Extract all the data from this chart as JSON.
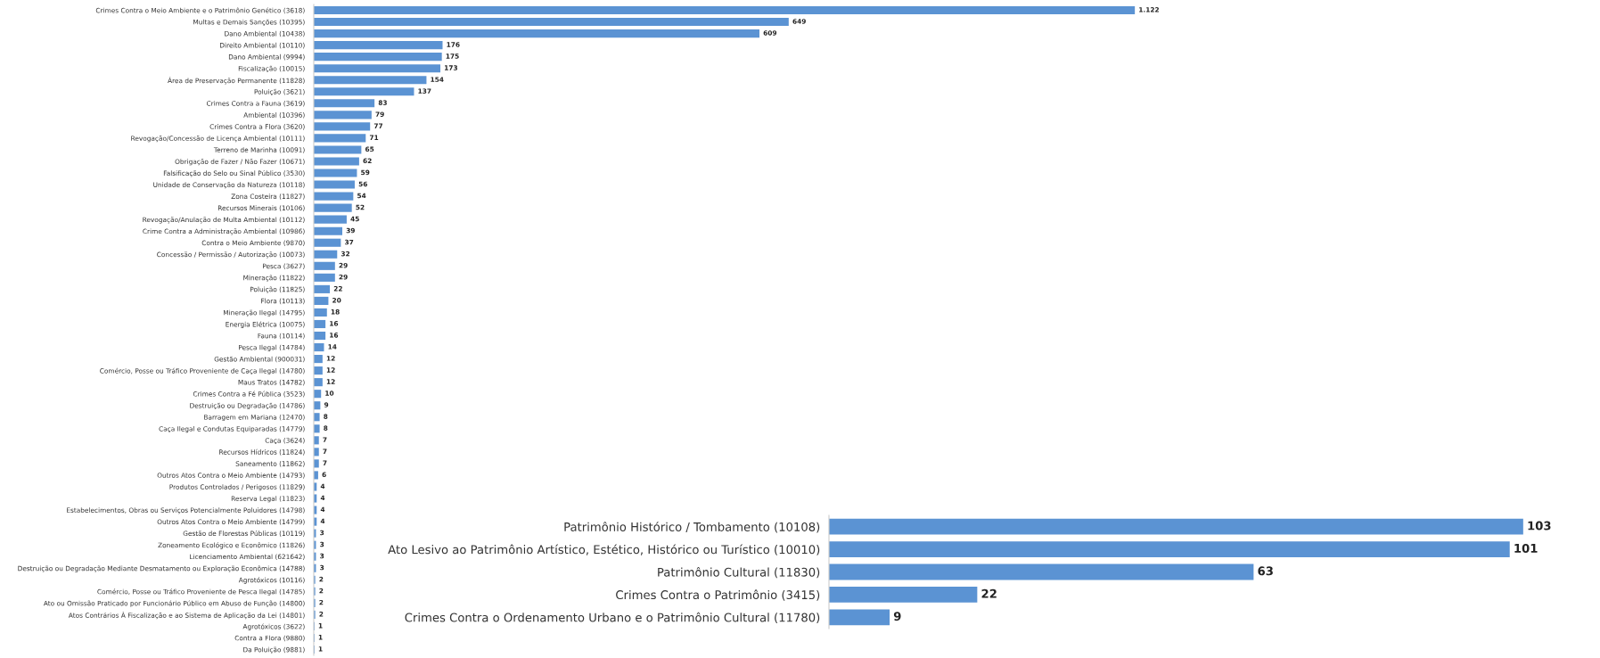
{
  "chart_data": [
    {
      "type": "bar",
      "orientation": "horizontal",
      "categories": [
        "Crimes Contra o Meio Ambiente e o Patrimônio Genético (3618)",
        "Multas e Demais Sanções (10395)",
        "Dano Ambiental (10438)",
        "Direito Ambiental (10110)",
        "Dano Ambiental (9994)",
        "Fiscalização (10015)",
        "Área de Preservação Permanente (11828)",
        "Poluição (3621)",
        "Crimes Contra a Fauna (3619)",
        "Ambiental (10396)",
        "Crimes Contra a Flora (3620)",
        "Revogação/Concessão de Licença Ambiental (10111)",
        "Terreno de Marinha (10091)",
        "Obrigação de Fazer / Não Fazer (10671)",
        "Falsificação do Selo ou Sinal Público (3530)",
        "Unidade de Conservação da Natureza (10118)",
        "Zona Costeira (11827)",
        "Recursos Minerais (10106)",
        "Revogação/Anulação de Multa Ambiental (10112)",
        "Crime Contra a Administração Ambiental (10986)",
        "Contra o Meio Ambiente (9870)",
        "Concessão / Permissão / Autorização (10073)",
        "Pesca (3627)",
        "Mineração (11822)",
        "Poluição (11825)",
        "Flora (10113)",
        "Mineração Ilegal (14795)",
        "Energia Elétrica (10075)",
        "Fauna (10114)",
        "Pesca Ilegal (14784)",
        "Gestão Ambiental (900031)",
        "Comércio, Posse ou Tráfico Proveniente de Caça Ilegal (14780)",
        "Maus Tratos (14782)",
        "Crimes Contra a Fé Pública (3523)",
        "Destruição ou Degradação (14786)",
        "Barragem em Mariana (12470)",
        "Caça Ilegal e Condutas Equiparadas (14779)",
        "Caça (3624)",
        "Recursos Hídricos (11824)",
        "Saneamento (11862)",
        "Outros Atos Contra o Meio Ambiente (14793)",
        "Produtos Controlados / Perigosos (11829)",
        "Reserva Legal (11823)",
        "Estabelecimentos, Obras ou Serviços Potencialmente Poluidores (14798)",
        "Outros Atos Contra o Meio Ambiente (14799)",
        "Gestão de Florestas Públicas (10119)",
        "Zoneamento Ecológico e Econômico (11826)",
        "Licenciamento Ambiental (621642)",
        "Destruição ou Degradação Mediante Desmatamento ou Exploração Econômica (14788)",
        "Agrotóxicos (10116)",
        "Comércio, Posse ou Tráfico Proveniente de Pesca Ilegal (14785)",
        "Ato ou Omissão Praticado por Funcionário Público em Abuso de Função (14800)",
        "Atos Contrários À Fiscalização e ao Sistema de Aplicação da Lei (14801)",
        "Agrotóxicos (3622)",
        "Contra a Flora (9880)",
        "Da Poluição (9881)"
      ],
      "values": [
        1122,
        649,
        609,
        176,
        175,
        173,
        154,
        137,
        83,
        79,
        77,
        71,
        65,
        62,
        59,
        56,
        54,
        52,
        45,
        39,
        37,
        32,
        29,
        29,
        22,
        20,
        18,
        16,
        16,
        14,
        12,
        12,
        12,
        10,
        9,
        8,
        8,
        7,
        7,
        7,
        6,
        4,
        4,
        4,
        4,
        3,
        3,
        3,
        3,
        2,
        2,
        2,
        2,
        1,
        1,
        1
      ],
      "value_labels": [
        "1.122",
        "649",
        "609",
        "176",
        "175",
        "173",
        "154",
        "137",
        "83",
        "79",
        "77",
        "71",
        "65",
        "62",
        "59",
        "56",
        "54",
        "52",
        "45",
        "39",
        "37",
        "32",
        "29",
        "29",
        "22",
        "20",
        "18",
        "16",
        "16",
        "14",
        "12",
        "12",
        "12",
        "10",
        "9",
        "8",
        "8",
        "7",
        "7",
        "7",
        "6",
        "4",
        "4",
        "4",
        "4",
        "3",
        "3",
        "3",
        "3",
        "2",
        "2",
        "2",
        "2",
        "1",
        "1",
        "1"
      ],
      "color": "#5b93d3",
      "tick_labels": "y",
      "grid": false,
      "legend": false
    },
    {
      "type": "bar",
      "orientation": "horizontal",
      "categories": [
        "Patrimônio Histórico / Tombamento (10108)",
        "Ato Lesivo ao Patrimônio Artístico, Estético, Histórico ou Turístico (10010)",
        "Patrimônio Cultural (11830)",
        "Crimes Contra o Patrimônio (3415)",
        "Crimes Contra o Ordenamento Urbano e o Patrimônio Cultural (11780)"
      ],
      "values": [
        103,
        101,
        63,
        22,
        9
      ],
      "data_labels": true,
      "color": "#5b93d3",
      "tick_labels": "y",
      "grid": false,
      "legend": false
    }
  ]
}
